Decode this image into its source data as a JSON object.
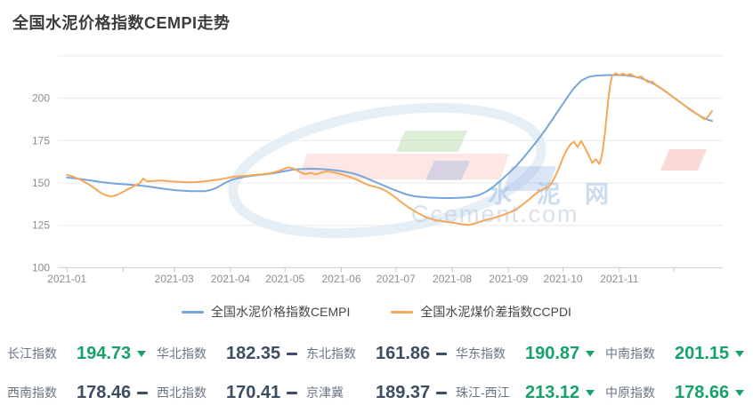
{
  "title": "全国水泥价格指数CEMPI走势",
  "watermark": {
    "cn_text": "水 泥 网",
    "en_text": "Ccement.com"
  },
  "colors": {
    "cempi_blue": "#76a6d9",
    "ccpdi_orange": "#f4a859",
    "green_down": "#17a26a",
    "dark_flat": "#3d4d63",
    "axis_label_gray": "#8e8e8e",
    "grid_gray": "#ebebeb"
  },
  "chart_data": {
    "type": "line",
    "title": "全国水泥价格指数CEMPI走势",
    "xlabel": "",
    "ylabel": "",
    "ylim": [
      100,
      225
    ],
    "y_ticks": [
      100,
      125,
      150,
      175,
      200
    ],
    "grid": true,
    "legend_position": "bottom",
    "x_tick_labels": [
      "2021-01",
      "2021-03",
      "2021-04",
      "2021-05",
      "2021-06",
      "2021-07",
      "2021-08",
      "2021-09",
      "2021-10",
      "2021-11"
    ],
    "series": [
      {
        "name": "全国水泥价格指数CEMPI",
        "color": "#76a6d9",
        "points": [
          [
            "2021-01-01",
            153.3
          ],
          [
            "2021-01-05",
            152.8
          ],
          [
            "2021-01-09",
            152.2
          ],
          [
            "2021-01-13",
            151.6
          ],
          [
            "2021-01-17",
            151.0
          ],
          [
            "2021-01-21",
            150.4
          ],
          [
            "2021-01-25",
            149.9
          ],
          [
            "2021-01-29",
            149.5
          ],
          [
            "2021-02-02",
            149.2
          ],
          [
            "2021-02-06",
            148.9
          ],
          [
            "2021-02-10",
            148.5
          ],
          [
            "2021-02-14",
            148.0
          ],
          [
            "2021-02-18",
            147.4
          ],
          [
            "2021-02-22",
            146.8
          ],
          [
            "2021-02-26",
            146.2
          ],
          [
            "2021-03-02",
            145.7
          ],
          [
            "2021-03-06",
            145.4
          ],
          [
            "2021-03-10",
            145.2
          ],
          [
            "2021-03-14",
            145.1
          ],
          [
            "2021-03-18",
            145.2
          ],
          [
            "2021-03-21",
            145.8
          ],
          [
            "2021-03-24",
            147.0
          ],
          [
            "2021-03-27",
            148.8
          ],
          [
            "2021-03-30",
            150.6
          ],
          [
            "2021-04-02",
            152.0
          ],
          [
            "2021-04-06",
            153.0
          ],
          [
            "2021-04-10",
            153.8
          ],
          [
            "2021-04-14",
            154.4
          ],
          [
            "2021-04-18",
            154.9
          ],
          [
            "2021-04-22",
            155.4
          ],
          [
            "2021-04-26",
            156.0
          ],
          [
            "2021-04-30",
            156.8
          ],
          [
            "2021-05-04",
            157.6
          ],
          [
            "2021-05-08",
            158.1
          ],
          [
            "2021-05-12",
            158.3
          ],
          [
            "2021-05-16",
            158.4
          ],
          [
            "2021-05-20",
            158.3
          ],
          [
            "2021-05-24",
            158.0
          ],
          [
            "2021-05-28",
            157.6
          ],
          [
            "2021-06-01",
            157.0
          ],
          [
            "2021-06-05",
            156.2
          ],
          [
            "2021-06-09",
            155.2
          ],
          [
            "2021-06-13",
            153.6
          ],
          [
            "2021-06-17",
            151.8
          ],
          [
            "2021-06-21",
            150.0
          ],
          [
            "2021-06-25",
            148.2
          ],
          [
            "2021-06-29",
            146.4
          ],
          [
            "2021-07-03",
            144.7
          ],
          [
            "2021-07-07",
            143.2
          ],
          [
            "2021-07-11",
            142.2
          ],
          [
            "2021-07-15",
            141.7
          ],
          [
            "2021-07-19",
            141.4
          ],
          [
            "2021-07-23",
            141.2
          ],
          [
            "2021-07-27",
            141.1
          ],
          [
            "2021-07-31",
            141.1
          ],
          [
            "2021-08-04",
            141.2
          ],
          [
            "2021-08-08",
            141.4
          ],
          [
            "2021-08-12",
            141.9
          ],
          [
            "2021-08-16",
            143.0
          ],
          [
            "2021-08-20",
            145.0
          ],
          [
            "2021-08-24",
            148.0
          ],
          [
            "2021-08-28",
            151.8
          ],
          [
            "2021-09-01",
            155.6
          ],
          [
            "2021-09-05",
            159.8
          ],
          [
            "2021-09-09",
            164.6
          ],
          [
            "2021-09-13",
            169.8
          ],
          [
            "2021-09-17",
            175.2
          ],
          [
            "2021-09-21",
            181.0
          ],
          [
            "2021-09-25",
            187.2
          ],
          [
            "2021-09-29",
            193.6
          ],
          [
            "2021-10-03",
            200.0
          ],
          [
            "2021-10-07",
            206.0
          ],
          [
            "2021-10-11",
            210.4
          ],
          [
            "2021-10-15",
            212.6
          ],
          [
            "2021-10-19",
            213.3
          ],
          [
            "2021-10-23",
            213.6
          ],
          [
            "2021-10-27",
            213.7
          ],
          [
            "2021-10-31",
            213.7
          ],
          [
            "2021-11-04",
            213.5
          ],
          [
            "2021-11-08",
            213.0
          ],
          [
            "2021-11-12",
            212.2
          ],
          [
            "2021-11-16",
            210.6
          ],
          [
            "2021-11-20",
            208.4
          ],
          [
            "2021-11-24",
            205.8
          ],
          [
            "2021-11-28",
            202.8
          ],
          [
            "2021-12-02",
            199.6
          ],
          [
            "2021-12-06",
            196.4
          ],
          [
            "2021-12-10",
            193.2
          ],
          [
            "2021-12-14",
            190.4
          ],
          [
            "2021-12-17",
            188.6
          ],
          [
            "2021-12-19",
            187.6
          ],
          [
            "2021-12-21",
            186.9
          ],
          [
            "2021-12-22",
            186.6
          ]
        ]
      },
      {
        "name": "全国水泥煤价差指数CCPDI",
        "color": "#f4a859",
        "points": [
          [
            "2021-01-01",
            154.8
          ],
          [
            "2021-01-04",
            153.9
          ],
          [
            "2021-01-07",
            152.6
          ],
          [
            "2021-01-10",
            151.0
          ],
          [
            "2021-01-13",
            149.2
          ],
          [
            "2021-01-16",
            147.0
          ],
          [
            "2021-01-19",
            144.6
          ],
          [
            "2021-01-22",
            142.9
          ],
          [
            "2021-01-25",
            142.0
          ],
          [
            "2021-01-28",
            142.7
          ],
          [
            "2021-01-31",
            144.2
          ],
          [
            "2021-02-03",
            146.0
          ],
          [
            "2021-02-07",
            148.2
          ],
          [
            "2021-02-10",
            149.8
          ],
          [
            "2021-02-12",
            152.6
          ],
          [
            "2021-02-14",
            151.0
          ],
          [
            "2021-02-18",
            151.2
          ],
          [
            "2021-02-22",
            151.4
          ],
          [
            "2021-02-26",
            151.0
          ],
          [
            "2021-03-02",
            150.8
          ],
          [
            "2021-03-06",
            150.5
          ],
          [
            "2021-03-10",
            150.4
          ],
          [
            "2021-03-14",
            150.6
          ],
          [
            "2021-03-18",
            151.0
          ],
          [
            "2021-03-22",
            151.5
          ],
          [
            "2021-03-26",
            152.1
          ],
          [
            "2021-03-30",
            152.9
          ],
          [
            "2021-04-03",
            153.7
          ],
          [
            "2021-04-07",
            154.1
          ],
          [
            "2021-04-11",
            154.3
          ],
          [
            "2021-04-15",
            154.8
          ],
          [
            "2021-04-19",
            155.2
          ],
          [
            "2021-04-23",
            155.8
          ],
          [
            "2021-04-27",
            156.8
          ],
          [
            "2021-04-30",
            158.2
          ],
          [
            "2021-05-03",
            159.2
          ],
          [
            "2021-05-06",
            158.4
          ],
          [
            "2021-05-09",
            156.6
          ],
          [
            "2021-05-12",
            155.2
          ],
          [
            "2021-05-15",
            155.9
          ],
          [
            "2021-05-18",
            155.1
          ],
          [
            "2021-05-21",
            156.1
          ],
          [
            "2021-05-24",
            156.9
          ],
          [
            "2021-05-27",
            156.4
          ],
          [
            "2021-05-30",
            155.7
          ],
          [
            "2021-06-02",
            154.8
          ],
          [
            "2021-06-05",
            153.8
          ],
          [
            "2021-06-08",
            152.6
          ],
          [
            "2021-06-11",
            151.2
          ],
          [
            "2021-06-14",
            149.6
          ],
          [
            "2021-06-17",
            148.3
          ],
          [
            "2021-06-20",
            147.7
          ],
          [
            "2021-06-23",
            146.6
          ],
          [
            "2021-06-26",
            145.0
          ],
          [
            "2021-06-29",
            142.9
          ],
          [
            "2021-07-02",
            140.4
          ],
          [
            "2021-07-05",
            137.9
          ],
          [
            "2021-07-08",
            135.6
          ],
          [
            "2021-07-11",
            133.5
          ],
          [
            "2021-07-14",
            131.7
          ],
          [
            "2021-07-17",
            130.1
          ],
          [
            "2021-07-20",
            128.9
          ],
          [
            "2021-07-23",
            128.1
          ],
          [
            "2021-07-26",
            127.5
          ],
          [
            "2021-07-29",
            127.0
          ],
          [
            "2021-08-01",
            126.6
          ],
          [
            "2021-08-04",
            126.1
          ],
          [
            "2021-08-07",
            125.6
          ],
          [
            "2021-08-10",
            125.3
          ],
          [
            "2021-08-13",
            125.9
          ],
          [
            "2021-08-16",
            127.0
          ],
          [
            "2021-08-19",
            128.1
          ],
          [
            "2021-08-22",
            128.9
          ],
          [
            "2021-08-25",
            129.7
          ],
          [
            "2021-08-28",
            130.7
          ],
          [
            "2021-08-31",
            131.9
          ],
          [
            "2021-09-03",
            133.2
          ],
          [
            "2021-09-06",
            135.0
          ],
          [
            "2021-09-09",
            137.4
          ],
          [
            "2021-09-12",
            140.0
          ],
          [
            "2021-09-15",
            142.8
          ],
          [
            "2021-09-18",
            145.2
          ],
          [
            "2021-09-21",
            146.9
          ],
          [
            "2021-09-23",
            147.5
          ],
          [
            "2021-09-25",
            150.5
          ],
          [
            "2021-09-27",
            154.5
          ],
          [
            "2021-09-29",
            159.5
          ],
          [
            "2021-10-01",
            165.0
          ],
          [
            "2021-10-03",
            169.5
          ],
          [
            "2021-10-05",
            172.8
          ],
          [
            "2021-10-07",
            174.3
          ],
          [
            "2021-10-09",
            171.2
          ],
          [
            "2021-10-11",
            174.8
          ],
          [
            "2021-10-13",
            170.8
          ],
          [
            "2021-10-15",
            166.5
          ],
          [
            "2021-10-17",
            161.8
          ],
          [
            "2021-10-19",
            164.0
          ],
          [
            "2021-10-21",
            161.2
          ],
          [
            "2021-10-22",
            164.5
          ],
          [
            "2021-10-23",
            170.5
          ],
          [
            "2021-10-24",
            179.0
          ],
          [
            "2021-10-25",
            189.5
          ],
          [
            "2021-10-26",
            200.0
          ],
          [
            "2021-10-27",
            208.5
          ],
          [
            "2021-10-28",
            213.2
          ],
          [
            "2021-10-30",
            214.7
          ],
          [
            "2021-11-01",
            213.7
          ],
          [
            "2021-11-03",
            214.5
          ],
          [
            "2021-11-05",
            213.5
          ],
          [
            "2021-11-07",
            214.3
          ],
          [
            "2021-11-09",
            213.1
          ],
          [
            "2021-11-11",
            212.1
          ],
          [
            "2021-11-13",
            212.9
          ],
          [
            "2021-11-15",
            210.9
          ],
          [
            "2021-11-17",
            209.4
          ],
          [
            "2021-11-19",
            209.9
          ],
          [
            "2021-11-21",
            207.9
          ],
          [
            "2021-11-24",
            205.9
          ],
          [
            "2021-11-27",
            203.5
          ],
          [
            "2021-11-30",
            201.2
          ],
          [
            "2021-12-03",
            198.8
          ],
          [
            "2021-12-06",
            196.4
          ],
          [
            "2021-12-09",
            194.2
          ],
          [
            "2021-12-12",
            192.0
          ],
          [
            "2021-12-14",
            190.5
          ],
          [
            "2021-12-16",
            188.9
          ],
          [
            "2021-12-18",
            187.5
          ],
          [
            "2021-12-19",
            188.1
          ],
          [
            "2021-12-20",
            189.5
          ],
          [
            "2021-12-21",
            191.1
          ],
          [
            "2021-12-22",
            192.4
          ]
        ]
      }
    ]
  },
  "indices": {
    "rows": [
      [
        {
          "label": "长江指数",
          "value": "194.73",
          "trend": "down"
        },
        {
          "label": "华北指数",
          "value": "182.35",
          "trend": "flat"
        },
        {
          "label": "东北指数",
          "value": "161.86",
          "trend": "flat"
        },
        {
          "label": "华东指数",
          "value": "190.87",
          "trend": "down"
        },
        {
          "label": "中南指数",
          "value": "201.15",
          "trend": "down"
        }
      ],
      [
        {
          "label": "西南指数",
          "value": "178.46",
          "trend": "flat"
        },
        {
          "label": "西北指数",
          "value": "170.41",
          "trend": "flat"
        },
        {
          "label": "京津冀",
          "value": "189.37",
          "trend": "flat"
        },
        {
          "label": "珠江-西江",
          "value": "213.12",
          "trend": "down"
        },
        {
          "label": "中原指数",
          "value": "178.66",
          "trend": "down"
        }
      ]
    ]
  }
}
